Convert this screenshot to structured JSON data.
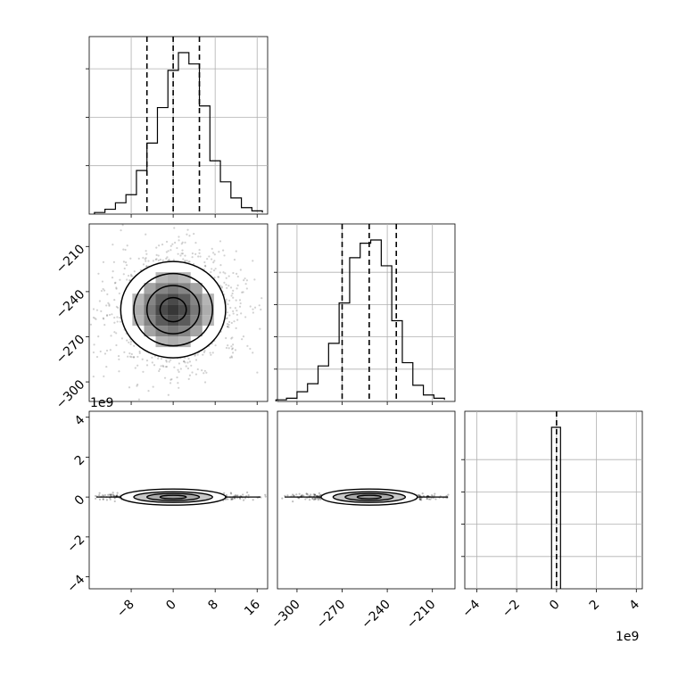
{
  "chart_data": {
    "type": "corner",
    "grid": true,
    "marginals": [
      {
        "id": "p1",
        "x_range": [
          -16,
          18
        ],
        "y_range": [
          0,
          1
        ],
        "bins": [
          -15,
          -13,
          -11,
          -9,
          -7,
          -5,
          -3,
          -1,
          1,
          3,
          5,
          7,
          9,
          11,
          13,
          15,
          17
        ],
        "counts": [
          0.01,
          0.03,
          0.07,
          0.12,
          0.27,
          0.44,
          0.66,
          0.89,
          1.0,
          0.93,
          0.67,
          0.33,
          0.2,
          0.1,
          0.04,
          0.02,
          0.01
        ],
        "quantiles": [
          -5,
          0,
          5
        ],
        "x_ticks": [
          -8,
          0,
          8,
          16
        ],
        "x_tick_labels": [
          "−8",
          "0",
          "8",
          "16"
        ],
        "y_ticks": [
          0.3,
          0.6,
          0.9
        ]
      },
      {
        "id": "p2",
        "x_range": [
          -313,
          -195
        ],
        "y_range": [
          0,
          1
        ],
        "bins": [
          -314,
          -307,
          -300,
          -293,
          -286,
          -279,
          -272,
          -265,
          -258,
          -251,
          -244,
          -237,
          -230,
          -223,
          -216,
          -209,
          -202
        ],
        "counts": [
          0.01,
          0.02,
          0.06,
          0.11,
          0.22,
          0.36,
          0.61,
          0.89,
          0.98,
          1.0,
          0.84,
          0.5,
          0.24,
          0.1,
          0.04,
          0.02,
          0.01
        ],
        "quantiles": [
          -270,
          -252,
          -234
        ],
        "x_ticks": [
          -300,
          -270,
          -240,
          -210
        ],
        "x_tick_labels": [
          "−300",
          "−270",
          "−240",
          "−210"
        ],
        "y_ticks": [
          0.2,
          0.4,
          0.6,
          0.8
        ]
      },
      {
        "id": "p3",
        "x_range": [
          -4.6,
          4.3
        ],
        "y_range": [
          0,
          1
        ],
        "bins": [
          -0.25,
          0.2
        ],
        "counts": [
          1.0
        ],
        "quantiles": [
          0
        ],
        "x_ticks": [
          -4,
          -2,
          0,
          2,
          4
        ],
        "x_tick_labels": [
          "−4",
          "−2",
          "0",
          "2",
          "4"
        ],
        "y_ticks": [
          0.2,
          0.4,
          0.6,
          0.8
        ],
        "offset_text": "1e9"
      }
    ],
    "joint_12": {
      "x_range": [
        -16,
        18
      ],
      "y_range": [
        -313,
        -195
      ],
      "y_ticks": [
        -210,
        -240,
        -270,
        -300
      ],
      "y_tick_labels": [
        "−210",
        "−240",
        "−270",
        "−300"
      ],
      "center": [
        0,
        -252
      ],
      "sigma": [
        5,
        16
      ],
      "contour_levels_sigma": [
        0.5,
        1.0,
        1.5,
        2.0
      ]
    },
    "joint_13": {
      "x_range": [
        -16,
        18
      ],
      "y_range": [
        -4.6,
        4.3
      ],
      "y_ticks": [
        4,
        2,
        0,
        -2,
        -4
      ],
      "y_tick_labels": [
        "4",
        "2",
        "0",
        "−2",
        "−4"
      ],
      "offset_text": "1e9",
      "center": [
        0,
        0
      ],
      "sigma": [
        5,
        0.08
      ]
    },
    "joint_23": {
      "x_range": [
        -313,
        -195
      ],
      "y_range": [
        -4.6,
        4.3
      ],
      "center": [
        -252,
        0
      ],
      "sigma": [
        16,
        0.08
      ]
    }
  }
}
